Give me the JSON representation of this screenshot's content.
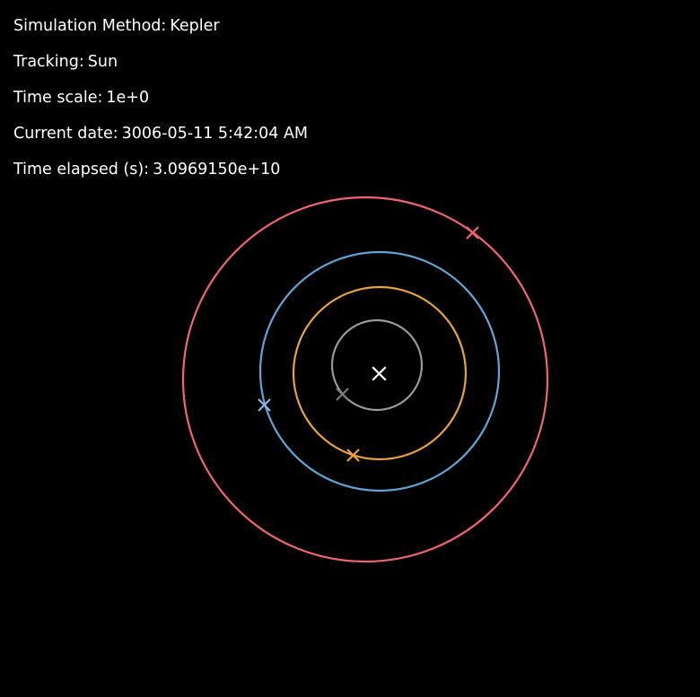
{
  "hud": {
    "method_label": "Simulation Method:",
    "method_value": "Kepler",
    "tracking_label": "Tracking:",
    "tracking_value": "Sun",
    "time_scale_label": "Time scale:",
    "time_scale_value": "1e+0",
    "date_label": "Current date:",
    "date_value": "3006-05-11 5:42:04 AM",
    "elapsed_label": "Time elapsed (s):",
    "elapsed_value": "3.0969150e+10"
  },
  "scene": {
    "background": "#000000",
    "sun": {
      "marker": "cross-icon",
      "color": "#ffffff"
    },
    "orbits": [
      {
        "name": "orbit-grey",
        "color": "#9a9a9a",
        "marker_color": "#7a7a7a"
      },
      {
        "name": "orbit-orange",
        "color": "#e8a33a",
        "marker_color": "#e8a33a"
      },
      {
        "name": "orbit-blue",
        "color": "#5fa6d6",
        "marker_color": "#8ab8de"
      },
      {
        "name": "orbit-red",
        "color": "#f0646e",
        "marker_color": "#f0646e"
      }
    ]
  }
}
